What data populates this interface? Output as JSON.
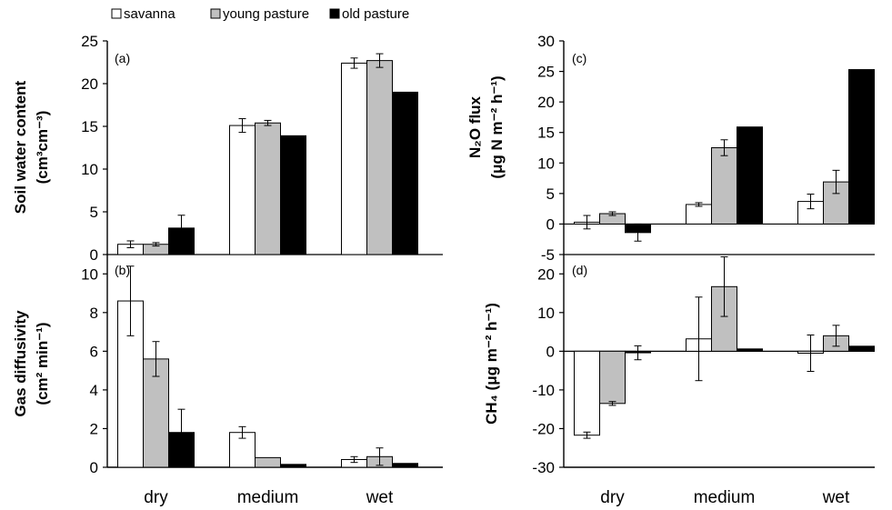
{
  "legend": [
    {
      "label": "savanna",
      "color": "#ffffff"
    },
    {
      "label": "young pasture",
      "color": "#c0c0c0"
    },
    {
      "label": "old pasture",
      "color": "#000000"
    }
  ],
  "categories": [
    "dry",
    "medium",
    "wet"
  ],
  "chart_data": [
    {
      "type": "bar",
      "panel": "(a)",
      "ylabel_line1": "Soil water content",
      "ylabel_line2": "(cm³cm⁻³)",
      "ylim": [
        0,
        25
      ],
      "ticks": [
        0,
        5,
        10,
        15,
        20,
        25
      ],
      "categories": [
        "dry",
        "medium",
        "wet"
      ],
      "series": [
        {
          "name": "savanna",
          "values": [
            1.2,
            15.1,
            22.4
          ],
          "errors": [
            0.4,
            0.8,
            0.6
          ]
        },
        {
          "name": "young pasture",
          "values": [
            1.2,
            15.4,
            22.7
          ],
          "errors": [
            0.2,
            0.3,
            0.8
          ]
        },
        {
          "name": "old pasture",
          "values": [
            3.1,
            13.9,
            19.0
          ],
          "errors": [
            1.5,
            0,
            0
          ]
        }
      ]
    },
    {
      "type": "bar",
      "panel": "(b)",
      "ylabel_line1": "Gas diffusivity",
      "ylabel_line2": "(cm² min⁻¹)",
      "ylim": [
        0,
        11
      ],
      "ticks": [
        0,
        2,
        4,
        6,
        8,
        10
      ],
      "categories": [
        "dry",
        "medium",
        "wet"
      ],
      "series": [
        {
          "name": "savanna",
          "values": [
            8.6,
            1.8,
            0.4
          ],
          "errors": [
            1.8,
            0.3,
            0.15
          ]
        },
        {
          "name": "young pasture",
          "values": [
            5.6,
            0.5,
            0.55
          ],
          "errors": [
            0.9,
            0,
            0.45
          ]
        },
        {
          "name": "old pasture",
          "values": [
            1.8,
            0.15,
            0.2
          ],
          "errors": [
            1.2,
            0,
            0
          ]
        }
      ]
    },
    {
      "type": "bar",
      "panel": "(c)",
      "ylabel_line1": "N₂O flux",
      "ylabel_line2": "(μg N m⁻² h⁻¹)",
      "ylim": [
        -5,
        30
      ],
      "ticks": [
        -5,
        0,
        5,
        10,
        15,
        20,
        25,
        30
      ],
      "categories": [
        "dry",
        "medium",
        "wet"
      ],
      "series": [
        {
          "name": "savanna",
          "values": [
            0.3,
            3.2,
            3.7
          ],
          "errors": [
            1.1,
            0.3,
            1.2
          ]
        },
        {
          "name": "young pasture",
          "values": [
            1.7,
            12.5,
            6.9
          ],
          "errors": [
            0.3,
            1.3,
            1.9
          ]
        },
        {
          "name": "old pasture",
          "values": [
            -1.4,
            15.9,
            25.3
          ],
          "errors": [
            1.4,
            0,
            0
          ]
        }
      ]
    },
    {
      "type": "bar",
      "panel": "(d)",
      "ylabel_line1": "CH₄ (μg m⁻² h⁻¹)",
      "ylabel_line2": "",
      "ylim": [
        -30,
        25
      ],
      "ticks": [
        -30,
        -20,
        -10,
        0,
        10,
        20
      ],
      "categories": [
        "dry",
        "medium",
        "wet"
      ],
      "series": [
        {
          "name": "savanna",
          "values": [
            -21.7,
            3.2,
            -0.5
          ],
          "errors": [
            0.8,
            10.8,
            4.7
          ]
        },
        {
          "name": "young pasture",
          "values": [
            -13.5,
            16.7,
            4.0
          ],
          "errors": [
            0.5,
            7.7,
            2.7
          ]
        },
        {
          "name": "old pasture",
          "values": [
            -0.4,
            0.6,
            1.3
          ],
          "errors": [
            1.8,
            0,
            0
          ]
        }
      ]
    }
  ]
}
